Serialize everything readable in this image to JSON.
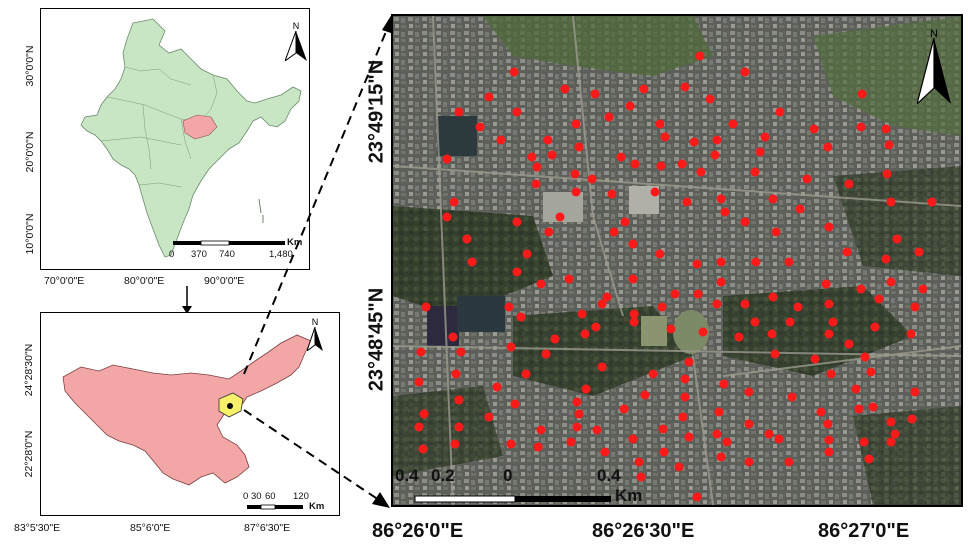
{
  "india_map": {
    "lat_ticks": [
      "30°0'0\"N",
      "20°0'0\"N",
      "10°0'0\"N"
    ],
    "lon_ticks": [
      "70°0'0\"E",
      "80°0'0\"E",
      "90°0'0\"E"
    ],
    "north": "N",
    "scale": {
      "labels": [
        "0",
        "370",
        "740",
        "1,480"
      ],
      "unit": "Km"
    },
    "colors": {
      "land": "#c8e6c4",
      "highlight": "#f2a6a6",
      "border": "#555555"
    }
  },
  "jharkhand_map": {
    "lat_ticks": [
      "24°28'30\"N",
      "22°28'0\"N"
    ],
    "lon_ticks": [
      "83°5'30\"E",
      "85°6'0\"E",
      "87°6'30\"E"
    ],
    "north": "N",
    "scale": {
      "labels": [
        "0",
        "30",
        "60",
        "120"
      ],
      "unit": "Km"
    },
    "colors": {
      "land": "#f2a6a6",
      "highlight": "#f7f06a",
      "point": "#000000"
    }
  },
  "satellite_map": {
    "lat_ticks": [
      "23°49'15\"N",
      "23°48'45\"N"
    ],
    "lon_ticks": [
      "86°26'0\"E",
      "86°26'30\"E",
      "86°27'0\"E"
    ],
    "north": "N",
    "scale": {
      "labels": [
        "0.4",
        "0.2",
        "0",
        "0.4"
      ],
      "unit": "Km"
    },
    "colors": {
      "sample_point": "#ff1a1a"
    }
  }
}
